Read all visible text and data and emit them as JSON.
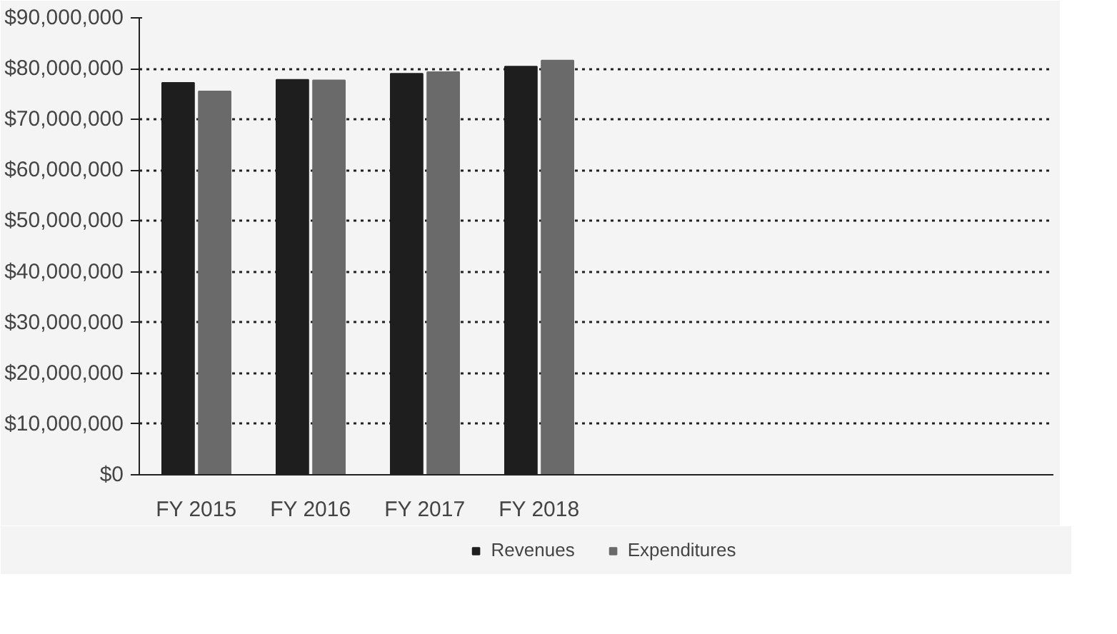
{
  "chart_data": {
    "type": "bar",
    "categories": [
      "FY 2015",
      "FY 2016",
      "FY 2017",
      "FY 2018",
      null,
      null,
      null,
      null
    ],
    "series": [
      {
        "name": "Revenues",
        "color": "#1e1e1e",
        "values": [
          77200000,
          77800000,
          79000000,
          80400000,
          null,
          null,
          null,
          null
        ]
      },
      {
        "name": "Expenditures",
        "color": "#6a6a6a",
        "values": [
          75500000,
          77700000,
          79300000,
          81600000,
          null,
          null,
          null,
          null
        ]
      }
    ],
    "ylim": [
      0,
      90000000
    ],
    "yticks": [
      {
        "value": 0,
        "label": "$0"
      },
      {
        "value": 10000000,
        "label": "$10,000,000"
      },
      {
        "value": 20000000,
        "label": "$20,000,000"
      },
      {
        "value": 30000000,
        "label": "$30,000,000"
      },
      {
        "value": 40000000,
        "label": "$40,000,000"
      },
      {
        "value": 50000000,
        "label": "$50,000,000"
      },
      {
        "value": 60000000,
        "label": "$60,000,000"
      },
      {
        "value": 70000000,
        "label": "$70,000,000"
      },
      {
        "value": 80000000,
        "label": "$80,000,000"
      },
      {
        "value": 90000000,
        "label": "$90,000,000"
      }
    ],
    "grid": "y",
    "legend": "bottom"
  }
}
